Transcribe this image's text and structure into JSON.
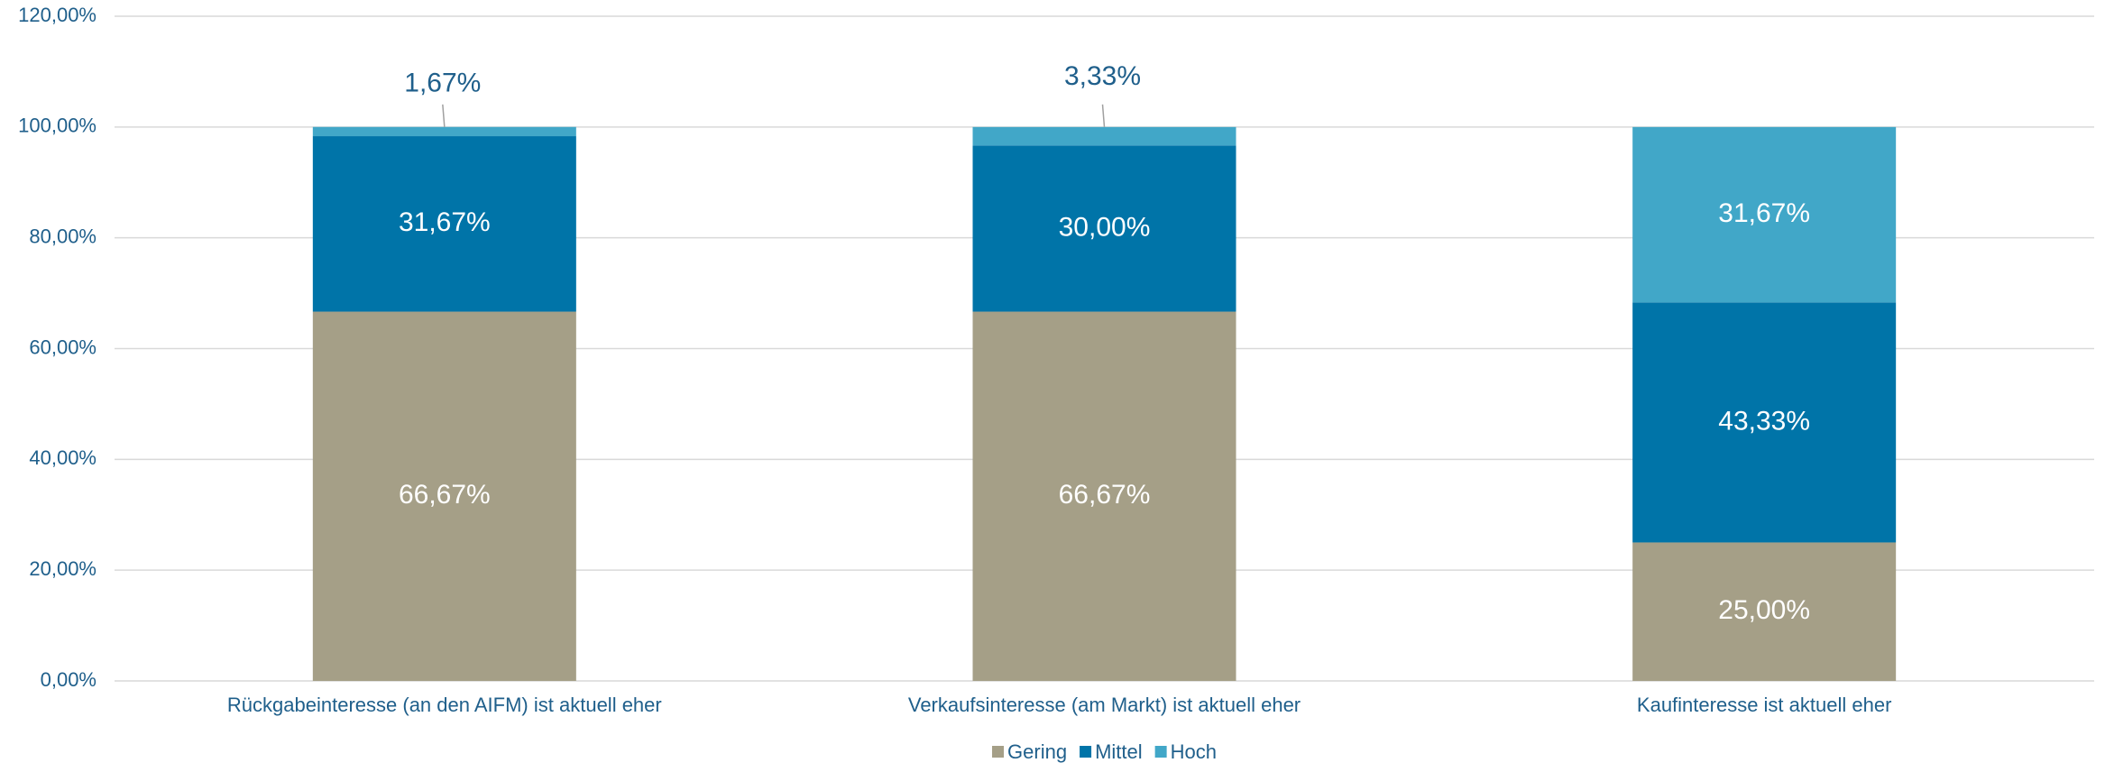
{
  "chart_data": {
    "type": "stacked_bar",
    "categories": [
      "Rückgabeinteresse (an den AIFM) ist aktuell eher",
      "Verkaufsinteresse (am Markt) ist aktuell eher",
      "Kaufinteresse ist aktuell eher"
    ],
    "series": [
      {
        "name": "Gering",
        "color": "#a59f87",
        "values": [
          66.67,
          66.67,
          25
        ],
        "value_labels": [
          "66,67%",
          "66,67%",
          "25,00%"
        ]
      },
      {
        "name": "Mittel",
        "color": "#0074a8",
        "values": [
          31.67,
          30,
          43.33
        ],
        "value_labels": [
          "31,67%",
          "30,00%",
          "43,33%"
        ]
      },
      {
        "name": "Hoch",
        "color": "#41a7c8",
        "values": [
          1.67,
          3.33,
          31.67
        ],
        "value_labels": [
          "1,67%",
          "3,33%",
          "31,67%"
        ]
      }
    ],
    "ylim": [
      0,
      120
    ],
    "yticks": [
      {
        "value": 0,
        "label": "0,00%"
      },
      {
        "value": 20,
        "label": "20,00%"
      },
      {
        "value": 40,
        "label": "40,00%"
      },
      {
        "value": 60,
        "label": "60,00%"
      },
      {
        "value": 80,
        "label": "80,00%"
      },
      {
        "value": 100,
        "label": "100,00%"
      },
      {
        "value": 120,
        "label": "120,00%"
      }
    ],
    "grid": true,
    "legend": "bottom"
  }
}
